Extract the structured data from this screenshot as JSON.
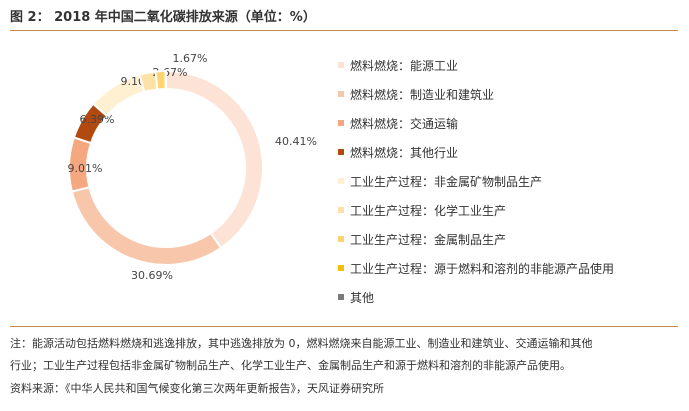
{
  "header": {
    "title": "图 2：  2018 年中国二氧化碳排放来源（单位：%）"
  },
  "chart_data": {
    "type": "pie",
    "title": "",
    "legend_position": "right",
    "categories": [
      "燃料燃烧：能源工业",
      "燃料燃烧：制造业和建筑业",
      "燃料燃烧：交通运输",
      "燃料燃烧：其他行业",
      "工业生产过程：非金属矿物制品生产",
      "工业生产过程：化学工业生产",
      "工业生产过程：金属制品生产",
      "工业生产过程：源于燃料和溶剂的非能源产品使用",
      "其他"
    ],
    "values": [
      40.41,
      30.69,
      9.01,
      6.39,
      9.1,
      2.67,
      1.67,
      0.06,
      0.0
    ],
    "labels": [
      "40.41%",
      "30.69%",
      "9.01%",
      "6.39%",
      "9.10%",
      "2.67%",
      "1.67%",
      "",
      ""
    ],
    "colors": [
      "#fde3d6",
      "#f8c7ab",
      "#f5a87f",
      "#b24a10",
      "#fff0d2",
      "#fde1a6",
      "#fdd56e",
      "#f6c100",
      "#7a7a7a"
    ]
  },
  "footer": {
    "note_line1": "注：能源活动包括燃料燃烧和逃逸排放，其中逃逸排放为 0，燃料燃烧来自能源工业、制造业和建筑业、交通运输和其他",
    "note_line2": "行业；工业生产过程包括非金属矿物制品生产、化学工业生产、金属制品生产和源于燃料和溶剂的非能源产品使用。",
    "source": "资料来源：《中华人民共和国气候变化第三次两年更新报告》，天风证券研究所"
  }
}
